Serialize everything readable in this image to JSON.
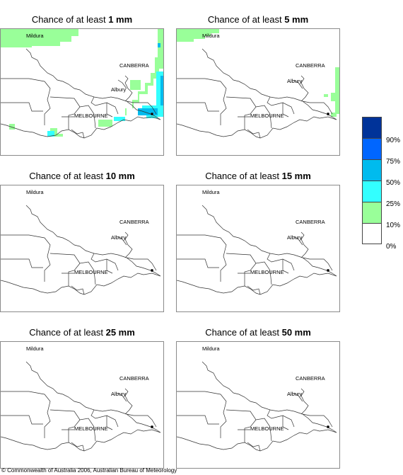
{
  "panels": [
    {
      "prefix": "Chance of at least ",
      "amount": "1 mm"
    },
    {
      "prefix": "Chance of at least ",
      "amount": "5 mm"
    },
    {
      "prefix": "Chance of at least ",
      "amount": "10 mm"
    },
    {
      "prefix": "Chance of at least ",
      "amount": "15 mm"
    },
    {
      "prefix": "Chance of at least ",
      "amount": "25 mm"
    },
    {
      "prefix": "Chance of at least ",
      "amount": "50 mm"
    }
  ],
  "cities": {
    "mildura": "Mildura",
    "canberra": "CANBERRA",
    "albury": "Albury",
    "melbourne": "MELBOURNE"
  },
  "legend": {
    "labels": [
      "90%",
      "75%",
      "50%",
      "25%",
      "10%",
      "0%"
    ],
    "colors": [
      "#003399",
      "#0066ff",
      "#00bbee",
      "#33ffff",
      "#99ff99",
      "#ffffff"
    ]
  },
  "copyright": "© Commonwealth of Australia 2006, Australian Bureau of Meteorology"
}
